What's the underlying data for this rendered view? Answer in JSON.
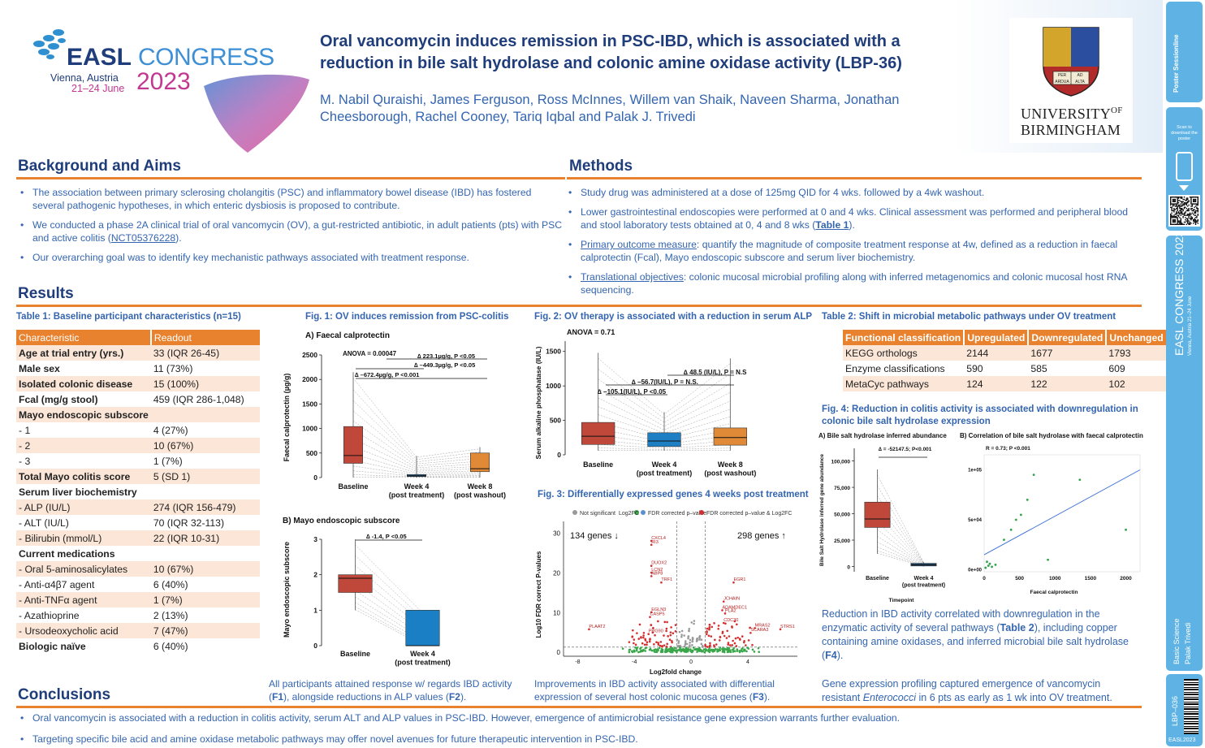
{
  "header": {
    "logo_easl": "EASL",
    "logo_congress": "CONGRESS",
    "logo_city": "Vienna, Austria",
    "logo_dates": "21–24 June",
    "logo_year": "2023",
    "title_line1": "Oral vancomycin induces remission in PSC-IBD, which is associated with a",
    "title_line2": "reduction in bile salt hydrolase and colonic amine oxidase activity (LBP-36)",
    "authors_line1": "M. Nabil Quraishi, James Ferguson, Ross McInnes, Willem van Shaik, Naveen Sharma, Jonathan",
    "authors_line2": "Cheesborough, Rachel Cooney, Tariq Iqbal and Palak J. Trivedi",
    "uni_line1": "UNIVERSITY",
    "uni_of": "OF",
    "uni_line2": "BIRMINGHAM",
    "crest_text1": "PER",
    "crest_text2": "AD",
    "crest_text3": "ARDUA",
    "crest_text4": "ALTA"
  },
  "background": {
    "title": "Background and Aims",
    "b1": "The association between primary sclerosing cholangitis (PSC) and inflammatory bowel disease (IBD) has fostered several pathogenic hypotheses, in which enteric dysbiosis is proposed to contribute.",
    "b2_pre": "We conducted a phase 2A clinical trial of oral vancomycin (OV), a gut-restricted antibiotic, in adult patients (pts) with PSC and active colitis (",
    "b2_link": "NCT05376228",
    "b2_post": ").",
    "b3": "Our overarching goal was to identify key mechanistic pathways associated with treatment response."
  },
  "methods": {
    "title": "Methods",
    "m1": "Study drug was administered at a dose of 125mg QID for 4 wks. followed by a 4wk washout.",
    "m2_pre": "Lower gastrointestinal endoscopies were performed at 0 and 4 wks. Clinical assessment was performed and peripheral blood and stool laboratory tests obtained at 0, 4 and 8 wks (",
    "m2_link": "Table 1",
    "m2_post": ").",
    "m3_link": "Primary outcome measure",
    "m3_post": ": quantify the magnitude of composite treatment response at 4w, defined as a reduction in faecal calprotectin (Fcal), Mayo endoscopic subscore and serum liver biochemistry.",
    "m4_link": "Translational objectives",
    "m4_post": ": colonic mucosal microbial profiling along with inferred metagenomics and colonic mucosal host RNA sequencing."
  },
  "results": {
    "title": "Results",
    "table1_title": "Table 1: Baseline participant characteristics (n=15)",
    "table1_headers": [
      "Characteristic",
      "Readout"
    ],
    "table1_rows": [
      {
        "c": "Age at trial entry (yrs.)",
        "r": "33 (IQR 26-45)",
        "bold": true
      },
      {
        "c": "Male sex",
        "r": "11 (73%)",
        "bold": true
      },
      {
        "c": "Isolated colonic disease",
        "r": "15 (100%)",
        "bold": true
      },
      {
        "c": "Fcal (mg/g stool)",
        "r": "459 (IQR 286-1,048)",
        "bold": true
      },
      {
        "c": "Mayo endoscopic subscore",
        "r": "",
        "bold": true
      },
      {
        "c": "- 1",
        "r": "4 (27%)",
        "bold": false
      },
      {
        "c": "- 2",
        "r": "10 (67%)",
        "bold": false
      },
      {
        "c": "- 3",
        "r": "1 (7%)",
        "bold": false
      },
      {
        "c": "Total Mayo colitis score",
        "r": "5 (SD 1)",
        "bold": true
      },
      {
        "c": "Serum liver biochemistry",
        "r": "",
        "bold": true
      },
      {
        "c": "- ALP (IU/L)",
        "r": "274 (IQR 156-479)",
        "bold": false
      },
      {
        "c": "- ALT (IU/L)",
        "r": "70 (IQR 32-113)",
        "bold": false
      },
      {
        "c": "- Bilirubin (mmol/L)",
        "r": "22 (IQR 10-31)",
        "bold": false
      },
      {
        "c": "Current medications",
        "r": "",
        "bold": true
      },
      {
        "c": "- Oral 5-aminosalicylates",
        "r": "10 (67%)",
        "bold": false
      },
      {
        "c": "- Anti-α4β7 agent",
        "r": "6 (40%)",
        "bold": false
      },
      {
        "c": "- Anti-TNFα agent",
        "r": "1 (7%)",
        "bold": false
      },
      {
        "c": "- Azathioprine",
        "r": "2 (13%)",
        "bold": false
      },
      {
        "c": "- Ursodeoxycholic acid",
        "r": "7 (47%)",
        "bold": false
      },
      {
        "c": "Biologic naïve",
        "r": "6 (40%)",
        "bold": true
      }
    ],
    "fig1_title": "Fig. 1: OV induces remission from PSC-colitis",
    "fig1a_label": "A) Faecal calprotectin",
    "fig1a_anova": "ANOVA = 0.00047",
    "fig1a_ylabel": "Faecal calprotectin (µg/g)",
    "fig1a_ann1": "∆ 223.1µg/g,  P <0.05",
    "fig1a_ann2": "∆ –449.3µg/g,  P <0.05",
    "fig1a_ann3": "∆ –672.4µg/g,  P <0.001",
    "fig1b_label": "B) Mayo endoscopic subscore",
    "fig1b_ylabel": "Mayo endoscopic subscore",
    "fig1b_ann": "∆ -1.4, P <0.05",
    "fig1_caption_pre": "All participants attained response w/ regards IBD activity (",
    "fig1_caption_f1": "F1",
    "fig1_caption_mid": "), alongside reductions in ALP values (",
    "fig1_caption_f2": "F2",
    "fig1_caption_post": ").",
    "fig2_title": "Fig. 2: OV therapy is associated with a reduction in serum ALP",
    "fig2_anova": "ANOVA = 0.71",
    "fig2_ylabel": "Serum alkaline phosphatase (IU/L)",
    "fig2_ann1": "∆ 48.5 (IU/L), P = N.S",
    "fig2_ann2": "∆ –56.7(IU/L), P = N.S.",
    "fig2_ann3": "∆ –105.1(IU/L), P <0.05",
    "fig3_title": "Fig. 3: Differentially expressed genes 4 weeks post treatment",
    "fig3_legend": [
      "Not significant",
      "Log2FC",
      "FDR corrected p–value",
      "FDR corrected p–value & Log2FC"
    ],
    "fig3_down": "134 genes ↓",
    "fig3_up": "298 genes ↑",
    "fig3_ylabel": "Log10 FDR correct P-values",
    "fig3_xlabel": "Log2fold change",
    "fig3_genes": [
      "CXCL4",
      "RI3",
      "DUOX2",
      "LCN2",
      "ABP8",
      "TRF1",
      "EGR1",
      "JCHAIN",
      "ADAMDEC1",
      "PLA2",
      "EGLN3",
      "CASP5",
      "PLAAT2",
      "PRG90",
      "CDC30",
      "MRAS2",
      "SCARA3",
      "STRS1"
    ],
    "fig23_caption_pre": "Improvements in IBD activity associated with differential expression of several host colonic mucosa genes (",
    "fig23_caption_link": "F3",
    "fig23_caption_post": ").",
    "table2_title": "Table 2: Shift in microbial metabolic pathways under OV treatment",
    "table2_headers": [
      "Functional classification",
      "Upregulated",
      "Downregulated",
      "Unchanged"
    ],
    "table2_rows": [
      [
        "KEGG orthologs",
        "2144",
        "1677",
        "1793"
      ],
      [
        "Enzyme classifications",
        "590",
        "585",
        "609"
      ],
      [
        "MetaCyc pathways",
        "124",
        "122",
        "102"
      ]
    ],
    "fig4_title": "Fig. 4: Reduction in colitis activity is associated with downregulation in colonic bile salt hydrolase expression",
    "fig4a_label": "A) Bile salt hydrolase inferred abundance",
    "fig4a_ann": "∆ = -52147.5; P<0.001",
    "fig4a_ylabel": "Bile Salt Hydrolase inferred gene abundance",
    "fig4a_xlabel": "Timepoint",
    "fig4b_label": "B) Correlation of bile salt hydrolase with faecal calprotectin",
    "fig4b_ann": "R = 0.73; P <0.001",
    "fig4b_xlabel": "Faecal calprotectin",
    "fig4_caption1_pre": "Reduction in IBD activity correlated with downregulation in the enzymatic activity of several pathways (",
    "fig4_caption1_link": "Table 2",
    "fig4_caption1_mid": "), including copper containing amine oxidases, and inferred microbial bile salt hydrolase (",
    "fig4_caption1_link2": "F4",
    "fig4_caption1_post": ").",
    "fig4_caption2_pre": "Gene expression profiling captured emergence of vancomycin resistant ",
    "fig4_caption2_em": "Enterococci",
    "fig4_caption2_post": " in 6 pts as early as 1 wk into OV treatment."
  },
  "conclusions": {
    "title": "Conclusions",
    "c1": "Oral vancomycin is associated with a reduction in colitis activity, serum ALT and ALP values in PSC-IBD. However, emergence of antimicrobial resistance gene expression warrants further evaluation.",
    "c2": "Targeting specific bile acid and amine oxidase metabolic pathways may offer novel avenues for future therapeutic intervention in PSC-IBD."
  },
  "sidebar": {
    "brand1": "Poster",
    "brand2": "Sessionline",
    "scan_text": "Scan to download the poster",
    "vertical_congress": "EASL CONGRESS 2023",
    "vertical_city": "Vienna, Austria 21–24 June",
    "topic": "Basic Science",
    "author": "Palak Trivedi",
    "code": "LBP–036",
    "footer": "EASL2023"
  },
  "chart_data": [
    {
      "type": "box",
      "title": "A) Faecal calprotectin",
      "ylabel": "Faecal calprotectin (µg/g)",
      "categories": [
        "Baseline",
        "Week 4\n(post treatment)",
        "Week 8\n(post washout)"
      ],
      "ylim": [
        0,
        2500
      ],
      "yticks": [
        0,
        500,
        1000,
        1500,
        2000,
        2500
      ],
      "boxes": [
        {
          "q1": 290,
          "median": 450,
          "q3": 1040,
          "min": 0,
          "max": 2150,
          "color": "#c0483b"
        },
        {
          "q1": 20,
          "median": 35,
          "q3": 60,
          "min": 0,
          "max": 440,
          "color": "#1f5f9a"
        },
        {
          "q1": 120,
          "median": 180,
          "q3": 500,
          "min": 0,
          "max": 620,
          "color": "#e08a37"
        }
      ]
    },
    {
      "type": "box",
      "title": "B) Mayo endoscopic subscore",
      "ylabel": "Mayo endoscopic subscore",
      "categories": [
        "Baseline",
        "Week 4\n(post treatment)"
      ],
      "ylim": [
        0,
        3
      ],
      "yticks": [
        0,
        1,
        2,
        3
      ],
      "boxes": [
        {
          "q1": 1.5,
          "median": 1.9,
          "q3": 2.0,
          "min": 1,
          "max": 3,
          "color": "#c0483b"
        },
        {
          "q1": 0,
          "median": 0,
          "q3": 1.0,
          "min": 0,
          "max": 1,
          "color": "#1a7fc4"
        }
      ]
    },
    {
      "type": "box",
      "title": "Serum alkaline phosphatase",
      "ylabel": "Serum alkaline phosphatase (IU/L)",
      "categories": [
        "Baseline",
        "Week 4\n(post treatment)",
        "Week 8\n(post washout)"
      ],
      "ylim": [
        0,
        1650
      ],
      "yticks": [
        0,
        500,
        1000,
        1500
      ],
      "boxes": [
        {
          "q1": 150,
          "median": 270,
          "q3": 470,
          "min": 60,
          "max": 1480,
          "color": "#c0483b"
        },
        {
          "q1": 120,
          "median": 200,
          "q3": 320,
          "min": 60,
          "max": 620,
          "color": "#1f7fc4"
        },
        {
          "q1": 140,
          "median": 250,
          "q3": 390,
          "min": 60,
          "max": 1400,
          "color": "#e08a37"
        }
      ]
    },
    {
      "type": "box",
      "title": "A) Bile salt hydrolase inferred abundance",
      "ylabel": "Bile Salt Hydrolase inferred gene abundance",
      "xlabel": "Timepoint",
      "categories": [
        "Baseline",
        "Week 4\n(post treatment)"
      ],
      "ylim": [
        -5000,
        112000
      ],
      "yticks": [
        0,
        25000,
        50000,
        75000,
        100000
      ],
      "yticklabels": [
        "0",
        "25,000",
        "50,000",
        "75,000",
        "100,000"
      ],
      "boxes": [
        {
          "q1": 37000,
          "median": 45000,
          "q3": 61000,
          "min": 12000,
          "max": 92000,
          "color": "#c0483b"
        },
        {
          "q1": 500,
          "median": 1500,
          "q3": 3000,
          "min": 0,
          "max": 4000,
          "color": "#1e4e79"
        }
      ]
    },
    {
      "type": "scatter",
      "title": "B) Correlation of bile salt hydrolase with faecal calprotectin",
      "xlabel": "Faecal calprotectin",
      "xlim": [
        0,
        2200
      ],
      "ylim": [
        -2000,
        115000
      ],
      "xticks": [
        0,
        500,
        1000,
        1500,
        2000
      ],
      "yticks": [
        0,
        50000,
        100000
      ],
      "yticklabels": [
        "0e+00",
        "5e+04",
        "1e+05"
      ],
      "points": [
        [
          20,
          2000
        ],
        [
          40,
          8000
        ],
        [
          60,
          4000
        ],
        [
          80,
          6000
        ],
        [
          110,
          3000
        ],
        [
          160,
          5000
        ],
        [
          280,
          30000
        ],
        [
          380,
          40000
        ],
        [
          450,
          50000
        ],
        [
          520,
          55000
        ],
        [
          610,
          70000
        ],
        [
          700,
          95000
        ],
        [
          900,
          10000
        ],
        [
          1350,
          90000
        ],
        [
          2000,
          40000
        ]
      ],
      "fit": [
        [
          0,
          15000
        ],
        [
          2200,
          100000
        ]
      ]
    }
  ]
}
